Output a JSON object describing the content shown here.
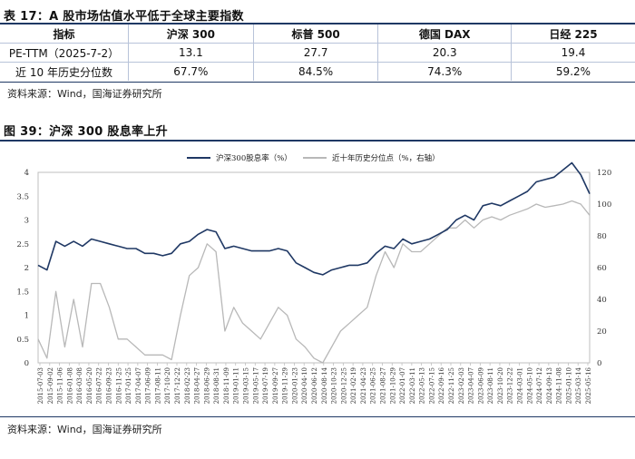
{
  "table": {
    "title": "表 17：A 股市场估值水平低于全球主要指数",
    "headers": [
      "指标",
      "沪深 300",
      "标普 500",
      "德国 DAX",
      "日经 225"
    ],
    "rows": [
      [
        "PE-TTM（2025-7-2）",
        "13.1",
        "27.7",
        "20.3",
        "19.4"
      ],
      [
        "近 10 年历史分位数",
        "67.7%",
        "84.5%",
        "74.3%",
        "59.2%"
      ]
    ],
    "source": "资料来源：Wind，国海证券研究所"
  },
  "figure": {
    "title": "图 39：沪深 300 股息率上升",
    "source": "资料来源：Wind，国海证券研究所",
    "colors": {
      "series1": "#1f3864",
      "series2": "#b8b8b8",
      "rule": "#1f3864"
    }
  },
  "chart_data": {
    "type": "line",
    "legend_placement": "top-center",
    "grid": false,
    "y_left": {
      "ticks": [
        "0",
        "0.5",
        "1",
        "1.5",
        "2",
        "2.5",
        "3",
        "3.5",
        "4"
      ],
      "ylim": [
        0,
        4
      ]
    },
    "y_right": {
      "ticks": [
        "0",
        "20",
        "40",
        "60",
        "80",
        "100",
        "120"
      ],
      "ylim": [
        0,
        120
      ]
    },
    "x_ticks": [
      "2015-07-03",
      "2015-09-02",
      "2015-11-06",
      "2016-01-08",
      "2016-03-08",
      "2016-05-20",
      "2016-07-22",
      "2016-09-23",
      "2016-11-25",
      "2017-01-25",
      "2017-04-07",
      "2017-06-09",
      "2017-08-11",
      "2017-10-20",
      "2017-12-22",
      "2018-02-23",
      "2018-04-27",
      "2018-06-29",
      "2018-08-31",
      "2018-11-09",
      "2019-01-11",
      "2019-03-15",
      "2019-05-17",
      "2019-07-19",
      "2019-09-27",
      "2019-11-29",
      "2020-01-23",
      "2020-04-10",
      "2020-06-12",
      "2020-08-14",
      "2020-10-23",
      "2020-12-25",
      "2021-02-19",
      "2021-04-23",
      "2021-06-25",
      "2021-08-27",
      "2021-10-29",
      "2022-01-07",
      "2022-03-11",
      "2022-05-13",
      "2022-07-15",
      "2022-09-16",
      "2022-11-25",
      "2023-02-03",
      "2023-04-07",
      "2023-06-09",
      "2023-08-11",
      "2023-10-20",
      "2023-12-22",
      "2024-03-01",
      "2024-05-10",
      "2024-07-12",
      "2024-09-13",
      "2024-11-08",
      "2025-01-10",
      "2025-03-14",
      "2025-05-16"
    ],
    "series": [
      {
        "name": "沪深300股息率（%）",
        "axis": "left",
        "values": [
          2.05,
          1.95,
          2.55,
          2.45,
          2.55,
          2.45,
          2.6,
          2.55,
          2.5,
          2.45,
          2.4,
          2.4,
          2.3,
          2.3,
          2.25,
          2.3,
          2.5,
          2.55,
          2.7,
          2.8,
          2.75,
          2.4,
          2.45,
          2.4,
          2.35,
          2.35,
          2.35,
          2.4,
          2.35,
          2.1,
          2.0,
          1.9,
          1.85,
          1.95,
          2.0,
          2.05,
          2.05,
          2.1,
          2.3,
          2.45,
          2.4,
          2.6,
          2.5,
          2.55,
          2.6,
          2.7,
          2.8,
          3.0,
          3.1,
          3.0,
          3.3,
          3.35,
          3.3,
          3.4,
          3.5,
          3.6,
          3.8,
          3.85,
          3.9,
          4.05,
          4.2,
          3.95,
          3.55
        ]
      },
      {
        "name": "近十年历史分位点（%，右轴）",
        "axis": "right",
        "values": [
          15,
          3,
          45,
          10,
          40,
          10,
          50,
          50,
          35,
          15,
          15,
          10,
          5,
          5,
          5,
          2,
          30,
          55,
          60,
          75,
          70,
          20,
          35,
          25,
          20,
          15,
          25,
          35,
          30,
          15,
          10,
          3,
          0,
          10,
          20,
          25,
          30,
          35,
          55,
          70,
          60,
          75,
          70,
          70,
          75,
          80,
          85,
          85,
          90,
          85,
          90,
          92,
          90,
          93,
          95,
          97,
          100,
          98,
          99,
          100,
          102,
          100,
          93
        ]
      }
    ]
  }
}
